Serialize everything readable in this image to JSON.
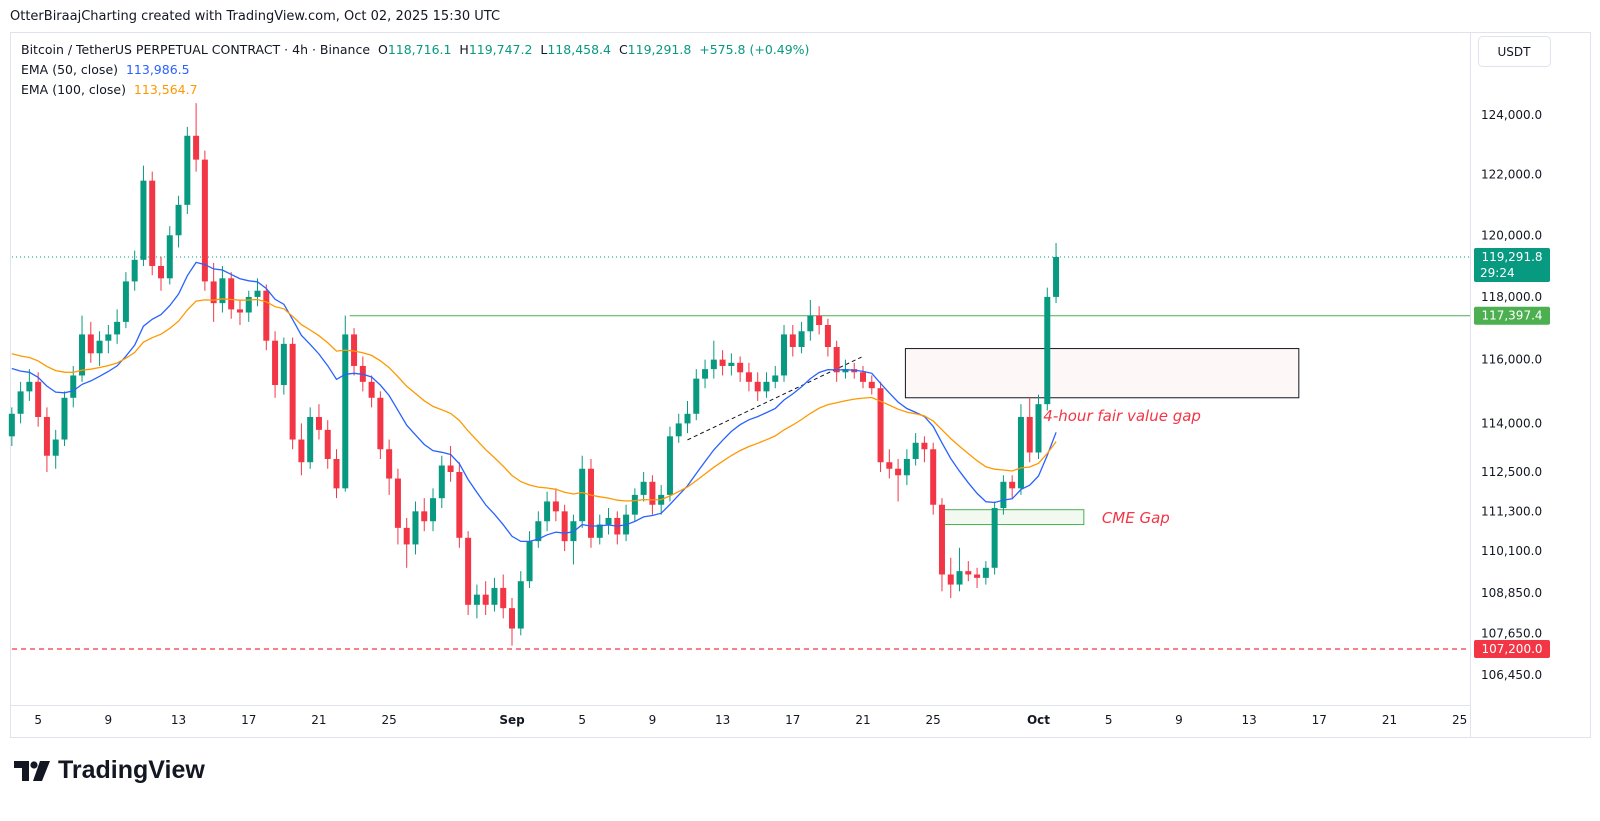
{
  "credit": "OtterBiraajCharting created with TradingView.com, Oct 02, 2025 15:30 UTC",
  "legend": {
    "symbol": "Bitcoin / TetherUS PERPETUAL CONTRACT · 4h · Binance",
    "o_label": "O",
    "o": "118,716.1",
    "h_label": "H",
    "h": "119,747.2",
    "l_label": "L",
    "l": "118,458.4",
    "c_label": "C",
    "c": "119,291.8",
    "change": "+575.8 (+0.49%)",
    "ema50_label": "EMA (50, close)",
    "ema50": "113,986.5",
    "ema100_label": "EMA (100, close)",
    "ema100": "113,564.7"
  },
  "currency": "USDT",
  "logo_text": "TradingView",
  "colors": {
    "up": "#089981",
    "down": "#f23645",
    "ema50": "#2962ff",
    "ema100": "#ff9800",
    "resistance": "#4caf50",
    "support": "#f23645",
    "annotation": "#f23645"
  },
  "chart_data": {
    "type": "candlestick",
    "scale": "log",
    "ylim": [
      106000,
      125500
    ],
    "xlim": [
      "2025-08-03",
      "2025-10-29"
    ],
    "grid": false,
    "y_ticks": [
      124000,
      122000,
      120000,
      118000,
      116000,
      114000,
      112500,
      111300,
      110100,
      108850,
      107650,
      106450
    ],
    "y_tick_labels": [
      "124,000.0",
      "122,000.0",
      "120,000.0",
      "118,000.0",
      "116,000.0",
      "114,000.0",
      "112,500.0",
      "111,300.0",
      "110,100.0",
      "108,850.0",
      "107,650.0",
      "106,450.0"
    ],
    "x_ticks": [
      {
        "date": "2025-08-05",
        "label": "5"
      },
      {
        "date": "2025-08-09",
        "label": "9"
      },
      {
        "date": "2025-08-13",
        "label": "13"
      },
      {
        "date": "2025-08-17",
        "label": "17"
      },
      {
        "date": "2025-08-21",
        "label": "21"
      },
      {
        "date": "2025-08-25",
        "label": "25"
      },
      {
        "date": "2025-09-01",
        "label": "Sep",
        "bold": true
      },
      {
        "date": "2025-09-05",
        "label": "5"
      },
      {
        "date": "2025-09-09",
        "label": "9"
      },
      {
        "date": "2025-09-13",
        "label": "13"
      },
      {
        "date": "2025-09-17",
        "label": "17"
      },
      {
        "date": "2025-09-21",
        "label": "21"
      },
      {
        "date": "2025-09-25",
        "label": "25"
      },
      {
        "date": "2025-10-01",
        "label": "Oct",
        "bold": true
      },
      {
        "date": "2025-10-05",
        "label": "5"
      },
      {
        "date": "2025-10-09",
        "label": "9"
      },
      {
        "date": "2025-10-13",
        "label": "13"
      },
      {
        "date": "2025-10-17",
        "label": "17"
      },
      {
        "date": "2025-10-21",
        "label": "21"
      },
      {
        "date": "2025-10-25",
        "label": "25"
      }
    ],
    "candles_start": "2025-08-03 12:00",
    "candles_interval": "12h",
    "ohlc": [
      [
        113600,
        114500,
        113300,
        114300
      ],
      [
        114300,
        115300,
        114000,
        115000
      ],
      [
        115000,
        115700,
        114700,
        115300
      ],
      [
        115300,
        115600,
        113900,
        114200
      ],
      [
        114200,
        114500,
        112500,
        113000
      ],
      [
        113000,
        113800,
        112600,
        113500
      ],
      [
        113500,
        115000,
        113300,
        114800
      ],
      [
        114800,
        115800,
        114500,
        115500
      ],
      [
        115500,
        117400,
        115300,
        116800
      ],
      [
        116800,
        117200,
        115900,
        116200
      ],
      [
        116200,
        116900,
        115800,
        116600
      ],
      [
        116600,
        117100,
        116200,
        116800
      ],
      [
        116800,
        117600,
        116500,
        117200
      ],
      [
        117200,
        118800,
        117000,
        118500
      ],
      [
        118500,
        119500,
        118200,
        119200
      ],
      [
        119200,
        122300,
        119000,
        121800
      ],
      [
        121800,
        122100,
        118700,
        119000
      ],
      [
        119000,
        119300,
        118200,
        118600
      ],
      [
        118600,
        120300,
        118400,
        120000
      ],
      [
        120000,
        121300,
        119600,
        121000
      ],
      [
        121000,
        123600,
        120700,
        123300
      ],
      [
        123300,
        124400,
        122100,
        122500
      ],
      [
        122500,
        122800,
        118200,
        118500
      ],
      [
        118500,
        119100,
        117200,
        117800
      ],
      [
        117800,
        119000,
        117500,
        118600
      ],
      [
        118600,
        118800,
        117300,
        117600
      ],
      [
        117600,
        117900,
        117100,
        117500
      ],
      [
        117500,
        118200,
        117200,
        118000
      ],
      [
        118000,
        118600,
        117700,
        118200
      ],
      [
        118200,
        118400,
        116300,
        116600
      ],
      [
        116600,
        116900,
        114800,
        115200
      ],
      [
        115200,
        116700,
        114900,
        116500
      ],
      [
        116500,
        116700,
        113200,
        113500
      ],
      [
        113500,
        114000,
        112400,
        112800
      ],
      [
        112800,
        114500,
        112600,
        114200
      ],
      [
        114200,
        114600,
        113500,
        113800
      ],
      [
        113800,
        114100,
        112600,
        112900
      ],
      [
        112900,
        113200,
        111700,
        112000
      ],
      [
        112000,
        117400,
        111900,
        116800
      ],
      [
        116800,
        117000,
        115500,
        115800
      ],
      [
        115800,
        116100,
        115000,
        115300
      ],
      [
        115300,
        115500,
        114500,
        114800
      ],
      [
        114800,
        115000,
        112900,
        113200
      ],
      [
        113200,
        113500,
        111800,
        112300
      ],
      [
        112300,
        112600,
        110300,
        110800
      ],
      [
        110800,
        111100,
        109600,
        110300
      ],
      [
        110300,
        111600,
        110000,
        111300
      ],
      [
        111300,
        111700,
        110700,
        111000
      ],
      [
        111000,
        112000,
        110700,
        111700
      ],
      [
        111700,
        113000,
        111400,
        112700
      ],
      [
        112700,
        113300,
        112200,
        112500
      ],
      [
        112500,
        112800,
        110200,
        110500
      ],
      [
        110500,
        110700,
        108200,
        108500
      ],
      [
        108500,
        109100,
        108100,
        108800
      ],
      [
        108800,
        109200,
        108200,
        108500
      ],
      [
        108500,
        109300,
        108300,
        109000
      ],
      [
        109000,
        109400,
        108100,
        108400
      ],
      [
        108400,
        108700,
        107300,
        107800
      ],
      [
        107800,
        109500,
        107600,
        109200
      ],
      [
        109200,
        110700,
        109000,
        110400
      ],
      [
        110400,
        111300,
        110200,
        111000
      ],
      [
        111000,
        111900,
        110700,
        111600
      ],
      [
        111600,
        112000,
        111000,
        111300
      ],
      [
        111300,
        111500,
        110100,
        110400
      ],
      [
        110400,
        111200,
        109700,
        111000
      ],
      [
        111000,
        113000,
        110800,
        112600
      ],
      [
        112600,
        112900,
        110200,
        110500
      ],
      [
        110500,
        111200,
        110300,
        110900
      ],
      [
        110900,
        111400,
        110600,
        111100
      ],
      [
        111100,
        111300,
        110300,
        110600
      ],
      [
        110600,
        111500,
        110400,
        111200
      ],
      [
        111200,
        112000,
        111000,
        111800
      ],
      [
        111800,
        112500,
        111600,
        112200
      ],
      [
        112200,
        112400,
        111200,
        111500
      ],
      [
        111500,
        112100,
        111200,
        111800
      ],
      [
        111800,
        113900,
        111600,
        113600
      ],
      [
        113600,
        114300,
        113400,
        114000
      ],
      [
        114000,
        114700,
        113700,
        114300
      ],
      [
        114300,
        115700,
        114100,
        115400
      ],
      [
        115400,
        116000,
        115100,
        115700
      ],
      [
        115700,
        116600,
        115400,
        116000
      ],
      [
        116000,
        116300,
        115500,
        115800
      ],
      [
        115800,
        116200,
        115500,
        115900
      ],
      [
        115900,
        116100,
        115300,
        115600
      ],
      [
        115600,
        115900,
        115000,
        115300
      ],
      [
        115300,
        115600,
        114700,
        115000
      ],
      [
        115000,
        115600,
        114800,
        115300
      ],
      [
        115300,
        115800,
        115100,
        115500
      ],
      [
        115500,
        117100,
        115300,
        116800
      ],
      [
        116800,
        117100,
        116100,
        116400
      ],
      [
        116400,
        117200,
        116200,
        116900
      ],
      [
        116900,
        117900,
        116600,
        117400
      ],
      [
        117400,
        117700,
        116800,
        117100
      ],
      [
        117100,
        117300,
        116100,
        116400
      ],
      [
        116400,
        116600,
        115300,
        115600
      ],
      [
        115600,
        116000,
        115400,
        115700
      ],
      [
        115700,
        115900,
        115400,
        115600
      ],
      [
        115600,
        115800,
        115100,
        115300
      ],
      [
        115300,
        115500,
        114900,
        115100
      ],
      [
        115100,
        115300,
        112500,
        112800
      ],
      [
        112800,
        113200,
        112300,
        112600
      ],
      [
        112600,
        112900,
        111600,
        112400
      ],
      [
        112400,
        113200,
        112100,
        112900
      ],
      [
        112900,
        113700,
        112700,
        113400
      ],
      [
        113400,
        113600,
        112800,
        113200
      ],
      [
        113200,
        113400,
        111200,
        111500
      ],
      [
        111500,
        111700,
        108900,
        109400
      ],
      [
        109400,
        109900,
        108700,
        109100
      ],
      [
        109100,
        110200,
        108900,
        109500
      ],
      [
        109500,
        109800,
        109200,
        109400
      ],
      [
        109400,
        109600,
        109000,
        109300
      ],
      [
        109300,
        109800,
        109100,
        109600
      ],
      [
        109600,
        111600,
        109400,
        111400
      ],
      [
        111400,
        112400,
        111200,
        112200
      ],
      [
        112200,
        112400,
        111700,
        112000
      ],
      [
        112000,
        114600,
        111800,
        114200
      ],
      [
        114200,
        114800,
        112800,
        113100
      ],
      [
        113100,
        114900,
        112900,
        114600
      ],
      [
        114600,
        118300,
        114400,
        118000
      ],
      [
        118000,
        119747.2,
        117800,
        119291.8
      ]
    ],
    "indicators": [
      {
        "name": "EMA (50, close)",
        "last": 113986.5
      },
      {
        "name": "EMA (100, close)",
        "last": 113564.7
      }
    ],
    "price_lines": [
      {
        "value": 119291.8,
        "label": "119,291.8",
        "sub": "29:24",
        "style": "dotted",
        "role": "last-price"
      },
      {
        "value": 117397.4,
        "label": "117,397.4",
        "style": "solid",
        "from": "2025-08-22 18:00",
        "role": "resistance"
      },
      {
        "value": 107200.0,
        "label": "107,200.0",
        "style": "dashed",
        "role": "support"
      }
    ],
    "zones": [
      {
        "label": "4-hour fair value gap",
        "top": 116350,
        "bottom": 114800,
        "from": "2025-09-23 10:00",
        "to": "2025-10-15 20:00"
      },
      {
        "label": "CME Gap",
        "top": 111350,
        "bottom": 110900,
        "from": "2025-09-25 14:00",
        "to": "2025-10-03 14:00"
      }
    ],
    "trendline": {
      "from": {
        "date": "2025-09-11 00:00",
        "price": 113490
      },
      "to": {
        "date": "2025-09-20 22:00",
        "price": 116080
      },
      "style": "dashed"
    }
  }
}
